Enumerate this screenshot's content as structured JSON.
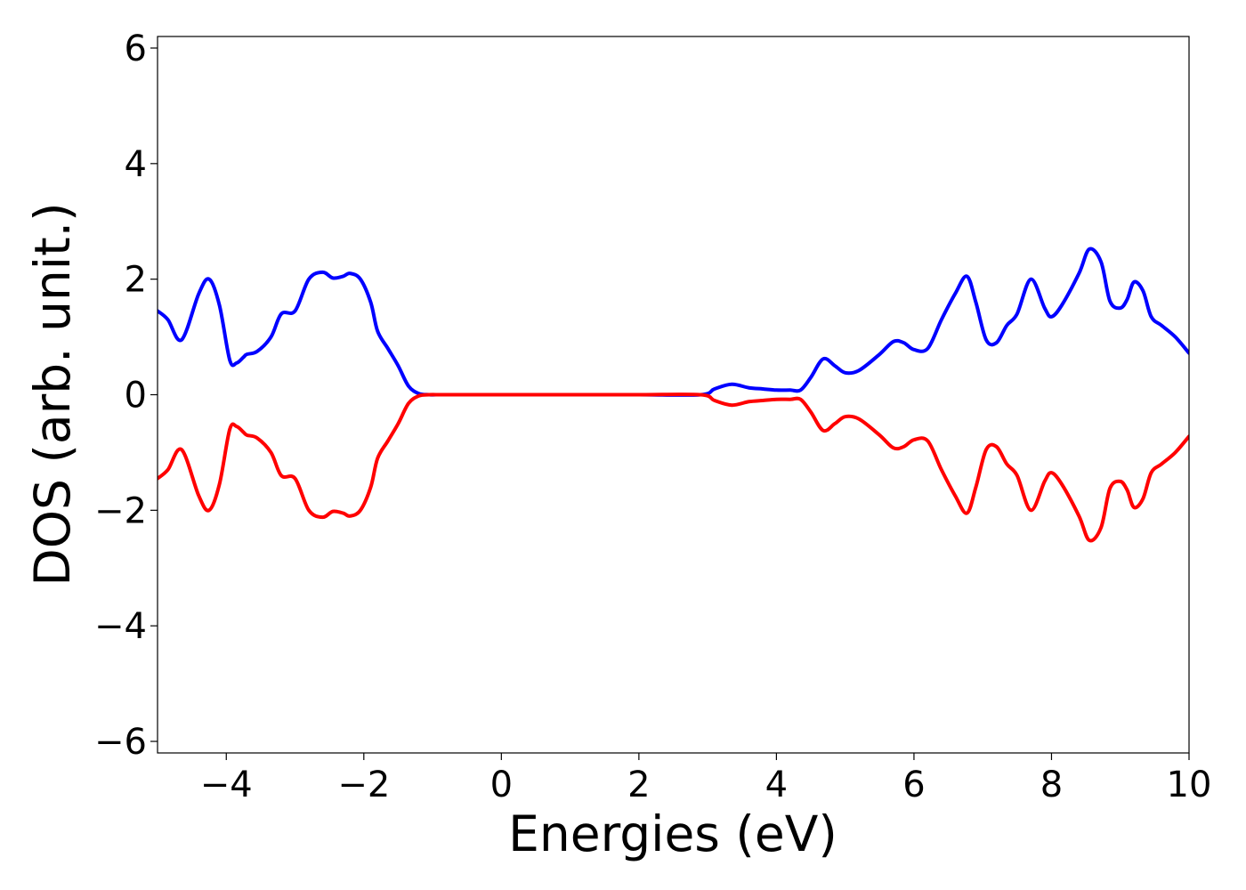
{
  "chart_data": {
    "type": "line",
    "title": "",
    "xlabel": "Energies (eV)",
    "ylabel": "DOS (arb. unit.)",
    "xlim": [
      -5,
      10
    ],
    "ylim": [
      -6.2,
      6.2
    ],
    "xticks": [
      -4,
      -2,
      0,
      2,
      4,
      6,
      8,
      10
    ],
    "yticks": [
      -6,
      -4,
      -2,
      0,
      2,
      4,
      6
    ],
    "xtick_labels": [
      "−4",
      "−2",
      "0",
      "2",
      "4",
      "6",
      "8",
      "10"
    ],
    "ytick_labels": [
      "−6",
      "−4",
      "−2",
      "0",
      "2",
      "4",
      "6"
    ],
    "grid": false,
    "legend": "none",
    "series": [
      {
        "color": "#0000ff",
        "x": [
          -5.0,
          -4.85,
          -4.65,
          -4.4,
          -4.25,
          -4.1,
          -3.95,
          -3.85,
          -3.75,
          -3.7,
          -3.55,
          -3.35,
          -3.2,
          -3.0,
          -2.8,
          -2.6,
          -2.45,
          -2.3,
          -2.2,
          -2.05,
          -1.9,
          -1.8,
          -1.65,
          -1.5,
          -1.35,
          -1.2,
          -1.05,
          -0.9,
          -0.75,
          -0.6,
          -0.4,
          0.0,
          1.0,
          2.0,
          2.9,
          3.1,
          3.35,
          3.6,
          3.8,
          4.0,
          4.2,
          4.35,
          4.5,
          4.68,
          4.85,
          5.0,
          5.2,
          5.5,
          5.7,
          5.85,
          6.0,
          6.2,
          6.4,
          6.6,
          6.77,
          6.9,
          7.05,
          7.2,
          7.35,
          7.5,
          7.7,
          7.9,
          8.0,
          8.15,
          8.4,
          8.55,
          8.72,
          8.85,
          9.0,
          9.1,
          9.2,
          9.33,
          9.45,
          9.6,
          9.8,
          10.0
        ],
        "y": [
          1.45,
          1.3,
          0.95,
          1.75,
          2.0,
          1.55,
          0.6,
          0.55,
          0.65,
          0.7,
          0.75,
          1.0,
          1.4,
          1.45,
          2.0,
          2.12,
          2.02,
          2.05,
          2.1,
          2.0,
          1.6,
          1.1,
          0.8,
          0.5,
          0.15,
          0.02,
          0.0,
          0.0,
          0.0,
          0.0,
          0.0,
          0.0,
          0.0,
          0.0,
          0.0,
          0.1,
          0.18,
          0.12,
          0.1,
          0.08,
          0.08,
          0.08,
          0.3,
          0.62,
          0.5,
          0.38,
          0.42,
          0.7,
          0.92,
          0.9,
          0.78,
          0.8,
          1.3,
          1.75,
          2.05,
          1.6,
          0.95,
          0.9,
          1.2,
          1.4,
          2.0,
          1.5,
          1.35,
          1.55,
          2.1,
          2.52,
          2.3,
          1.62,
          1.5,
          1.65,
          1.95,
          1.8,
          1.35,
          1.2,
          1.0,
          0.72
        ]
      },
      {
        "color": "#ff0000",
        "x": [
          -5.0,
          -4.85,
          -4.65,
          -4.4,
          -4.25,
          -4.1,
          -3.95,
          -3.85,
          -3.75,
          -3.7,
          -3.55,
          -3.35,
          -3.2,
          -3.0,
          -2.8,
          -2.6,
          -2.45,
          -2.3,
          -2.2,
          -2.05,
          -1.9,
          -1.8,
          -1.65,
          -1.5,
          -1.35,
          -1.2,
          -1.05,
          -0.9,
          -0.75,
          -0.6,
          -0.4,
          0.0,
          1.0,
          2.0,
          2.9,
          3.1,
          3.35,
          3.6,
          3.8,
          4.0,
          4.2,
          4.35,
          4.5,
          4.68,
          4.85,
          5.0,
          5.2,
          5.5,
          5.7,
          5.85,
          6.0,
          6.2,
          6.4,
          6.6,
          6.77,
          6.9,
          7.05,
          7.2,
          7.35,
          7.5,
          7.7,
          7.9,
          8.0,
          8.15,
          8.4,
          8.55,
          8.72,
          8.85,
          9.0,
          9.1,
          9.2,
          9.33,
          9.45,
          9.6,
          9.8,
          10.0
        ],
        "y": [
          -1.45,
          -1.3,
          -0.95,
          -1.75,
          -2.0,
          -1.55,
          -0.6,
          -0.55,
          -0.65,
          -0.7,
          -0.75,
          -1.0,
          -1.4,
          -1.45,
          -2.0,
          -2.12,
          -2.02,
          -2.05,
          -2.1,
          -2.0,
          -1.6,
          -1.1,
          -0.8,
          -0.5,
          -0.15,
          -0.02,
          0.0,
          0.0,
          0.0,
          0.0,
          0.0,
          0.0,
          0.0,
          0.0,
          0.0,
          -0.1,
          -0.18,
          -0.12,
          -0.1,
          -0.08,
          -0.08,
          -0.08,
          -0.3,
          -0.62,
          -0.5,
          -0.38,
          -0.42,
          -0.7,
          -0.92,
          -0.9,
          -0.78,
          -0.8,
          -1.3,
          -1.75,
          -2.05,
          -1.6,
          -0.95,
          -0.9,
          -1.2,
          -1.4,
          -2.0,
          -1.5,
          -1.35,
          -1.55,
          -2.1,
          -2.52,
          -2.3,
          -1.62,
          -1.5,
          -1.65,
          -1.95,
          -1.8,
          -1.35,
          -1.2,
          -1.0,
          -0.72
        ]
      }
    ]
  }
}
